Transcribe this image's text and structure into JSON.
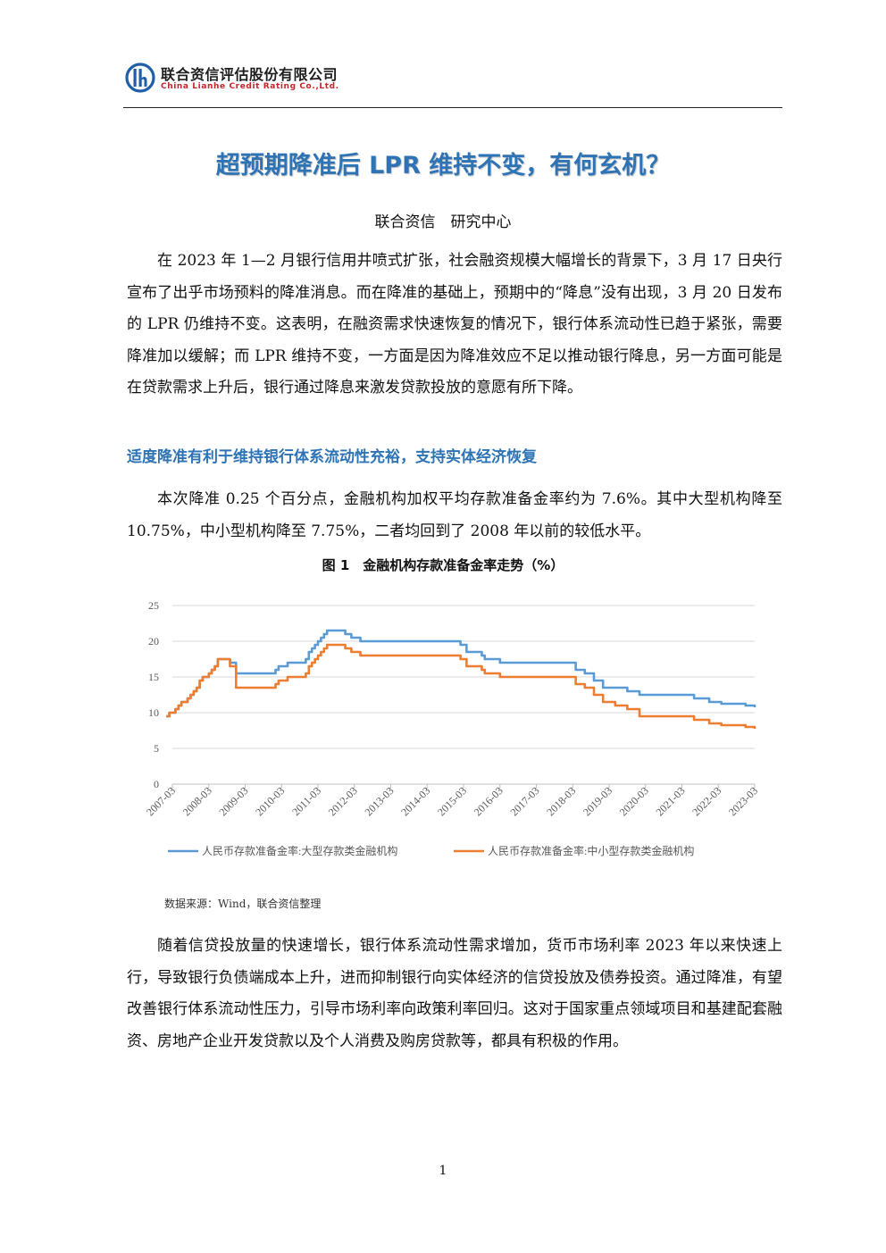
{
  "header": {
    "company_cn": "联合资信评估股份有限公司",
    "company_en": "China Lianhe Credit Rating Co.,Ltd."
  },
  "title": "超预期降准后 LPR 维持不变，有何玄机？",
  "byline": "联合资信　研究中心",
  "paragraphs": [
    "在 2023 年 1—2 月银行信用井喷式扩张，社会融资规模大幅增长的背景下，3 月 17 日央行宣布了出乎市场预料的降准消息。而在降准的基础上，预期中的“降息”没有出现，3 月 20 日发布的 LPR 仍维持不变。这表明，在融资需求快速恢复的情况下，银行体系流动性已趋于紧张，需要降准加以缓解；而 LPR 维持不变，一方面是因为降准效应不足以推动银行降息，另一方面可能是在贷款需求上升后，银行通过降息来激发贷款投放的意愿有所下降。",
    "本次降准 0.25 个百分点，金融机构加权平均存款准备金率约为 7.6%。其中大型机构降至 10.75%，中小型机构降至 7.75%，二者均回到了 2008 年以前的较低水平。",
    "随着信贷投放量的快速增长，银行体系流动性需求增加，货币市场利率 2023 年以来快速上行，导致银行负债端成本上升，进而抑制银行向实体经济的信贷投放及债券投资。通过降准，有望改善银行体系流动性压力，引导市场利率向政策利率回归。这对于国家重点领域项目和基建配套融资、房地产企业开发贷款以及个人消费及购房贷款等，都具有积极的作用。"
  ],
  "section_heading": "适度降准有利于维持银行体系流动性充裕，支持实体经济恢复",
  "figure": {
    "caption": "图 1　金融机构存款准备金率走势（%）",
    "source": "数据来源：Wind，联合资信整理"
  },
  "chart_data": {
    "type": "line",
    "title": "",
    "xlabel": "",
    "ylabel": "",
    "ylim": [
      0,
      25
    ],
    "yticks": [
      0,
      5,
      10,
      15,
      20,
      25
    ],
    "xlim": [
      "2007-03",
      "2023-03"
    ],
    "xticks": [
      "2007-03",
      "2008-03",
      "2009-03",
      "2010-03",
      "2011-03",
      "2012-03",
      "2013-03",
      "2014-03",
      "2015-03",
      "2016-03",
      "2017-03",
      "2018-03",
      "2019-03",
      "2020-03",
      "2021-03",
      "2022-03",
      "2023-03"
    ],
    "grid": "horizontal",
    "legend": "bottom",
    "series": [
      {
        "name": "人民币存款准备金率:大型存款类金融机构",
        "color": "#5b9bd5",
        "x": [
          "2007-01",
          "2007-02",
          "2007-04",
          "2007-05",
          "2007-06",
          "2007-08",
          "2007-09",
          "2007-10",
          "2007-11",
          "2007-12",
          "2008-01",
          "2008-03",
          "2008-04",
          "2008-05",
          "2008-06",
          "2008-09",
          "2008-10",
          "2008-12",
          "2010-01",
          "2010-02",
          "2010-05",
          "2010-11",
          "2010-12",
          "2011-01",
          "2011-02",
          "2011-03",
          "2011-04",
          "2011-05",
          "2011-06",
          "2011-12",
          "2012-02",
          "2012-05",
          "2015-02",
          "2015-04",
          "2015-09",
          "2015-10",
          "2016-03",
          "2018-04",
          "2018-07",
          "2018-10",
          "2019-01",
          "2019-05",
          "2019-09",
          "2020-01",
          "2021-07",
          "2021-12",
          "2022-04",
          "2022-12",
          "2023-03"
        ],
        "values": [
          9.5,
          10,
          10.5,
          11,
          11.5,
          12,
          12.5,
          13,
          13.5,
          14.5,
          15,
          15.5,
          16,
          16.5,
          17.5,
          17.5,
          17,
          15.5,
          16,
          16.5,
          17,
          17.5,
          18.5,
          19,
          19.5,
          20,
          20.5,
          21,
          21.5,
          21,
          20.5,
          20,
          19.5,
          18.5,
          18,
          17.5,
          17,
          16,
          15.5,
          14.5,
          13.5,
          13.5,
          13,
          12.5,
          12,
          11.5,
          11.25,
          11,
          10.75
        ]
      },
      {
        "name": "人民币存款准备金率:中小型存款类金融机构",
        "color": "#ed7d31",
        "x": [
          "2007-01",
          "2007-02",
          "2007-04",
          "2007-05",
          "2007-06",
          "2007-08",
          "2007-09",
          "2007-10",
          "2007-11",
          "2007-12",
          "2008-01",
          "2008-03",
          "2008-04",
          "2008-05",
          "2008-06",
          "2008-09",
          "2008-10",
          "2008-12",
          "2010-01",
          "2010-02",
          "2010-05",
          "2010-11",
          "2010-12",
          "2011-01",
          "2011-02",
          "2011-03",
          "2011-04",
          "2011-05",
          "2011-06",
          "2011-12",
          "2012-02",
          "2012-05",
          "2015-02",
          "2015-04",
          "2015-09",
          "2015-10",
          "2016-03",
          "2018-04",
          "2018-07",
          "2018-10",
          "2019-01",
          "2019-05",
          "2019-09",
          "2020-01",
          "2021-07",
          "2021-12",
          "2022-04",
          "2022-12",
          "2023-03"
        ],
        "values": [
          9.5,
          10,
          10.5,
          11,
          11.5,
          12,
          12.5,
          13,
          13.5,
          14.5,
          15,
          15.5,
          16,
          16.5,
          17.5,
          17.5,
          16.5,
          13.5,
          14,
          14.5,
          15,
          15.5,
          16.5,
          17,
          17.5,
          18,
          18.5,
          19,
          19.5,
          19,
          18.5,
          18,
          17.5,
          16.5,
          16,
          15.5,
          15,
          14,
          13.5,
          12.5,
          11.5,
          11,
          10.5,
          9.5,
          9,
          8.5,
          8.25,
          8,
          7.75
        ]
      }
    ]
  },
  "page_number": "1"
}
